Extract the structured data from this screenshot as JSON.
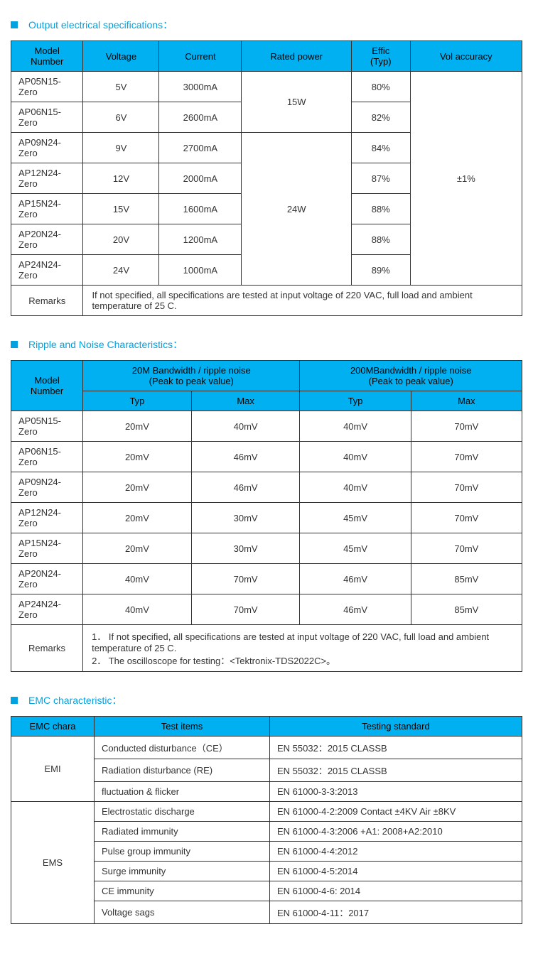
{
  "colors": {
    "accent": "#00a3e0",
    "header_bg": "#00b0f0",
    "border": "#333333",
    "text": "#333333"
  },
  "section1": {
    "title": "Output electrical specifications：",
    "headers": [
      "Model Number",
      "Voltage",
      "Current",
      "Rated power",
      "Effic (Typ)",
      "Vol accuracy"
    ],
    "rows": [
      {
        "model": "AP05N15-Zero",
        "voltage": "5V",
        "current": "3000mA",
        "effic": "80%"
      },
      {
        "model": "AP06N15-Zero",
        "voltage": "6V",
        "current": "2600mA",
        "effic": "82%"
      },
      {
        "model": "AP09N24-Zero",
        "voltage": "9V",
        "current": "2700mA",
        "effic": "84%"
      },
      {
        "model": "AP12N24-Zero",
        "voltage": "12V",
        "current": "2000mA",
        "effic": "87%"
      },
      {
        "model": "AP15N24-Zero",
        "voltage": "15V",
        "current": "1600mA",
        "effic": "88%"
      },
      {
        "model": "AP20N24-Zero",
        "voltage": "20V",
        "current": "1200mA",
        "effic": "88%"
      },
      {
        "model": "AP24N24-Zero",
        "voltage": "24V",
        "current": "1000mA",
        "effic": "89%"
      }
    ],
    "rated_power_1": "15W",
    "rated_power_2": "24W",
    "vol_accuracy": "±1%",
    "remarks_label": "Remarks",
    "remarks": "If not specified, all specifications are tested at input voltage of 220 VAC, full load and ambient temperature of 25 C."
  },
  "section2": {
    "title": "Ripple and Noise Characteristics：",
    "h_model": "Model Number",
    "h_20m": "20M Bandwidth / ripple noise (Peak to peak value)",
    "h_200m": "200MBandwidth / ripple noise (Peak to peak value)",
    "h_typ": "Typ",
    "h_max": "Max",
    "rows": [
      {
        "model": "AP05N15-Zero",
        "t1": "20mV",
        "m1": "40mV",
        "t2": "40mV",
        "m2": "70mV"
      },
      {
        "model": "AP06N15-Zero",
        "t1": "20mV",
        "m1": "46mV",
        "t2": "40mV",
        "m2": "70mV"
      },
      {
        "model": "AP09N24-Zero",
        "t1": "20mV",
        "m1": "46mV",
        "t2": "40mV",
        "m2": "70mV"
      },
      {
        "model": "AP12N24-Zero",
        "t1": "20mV",
        "m1": "30mV",
        "t2": "45mV",
        "m2": "70mV"
      },
      {
        "model": "AP15N24-Zero",
        "t1": "20mV",
        "m1": "30mV",
        "t2": "45mV",
        "m2": "70mV"
      },
      {
        "model": "AP20N24-Zero",
        "t1": "40mV",
        "m1": "70mV",
        "t2": "46mV",
        "m2": "85mV"
      },
      {
        "model": "AP24N24-Zero",
        "t1": "40mV",
        "m1": "70mV",
        "t2": "46mV",
        "m2": "85mV"
      }
    ],
    "remarks_label": "Remarks",
    "remarks": "1．  If not specified, all specifications are tested at input voltage of 220 VAC, full load and ambient temperature of 25 C.\n2．  The oscilloscope for testing：<Tektronix-TDS2022C>。"
  },
  "section3": {
    "title": "EMC characteristic：",
    "h1": "EMC chara",
    "h2": "Test items",
    "h3": "Testing standard",
    "emi_label": "EMI",
    "ems_label": "EMS",
    "emi_rows": [
      {
        "item": "Conducted disturbance（CE）",
        "std": "EN 55032：2015      CLASSB"
      },
      {
        "item": "Radiation disturbance (RE)",
        "std": "EN 55032：2015      CLASSB"
      },
      {
        "item": "fluctuation & flicker",
        "std": "EN 61000-3-3:2013"
      }
    ],
    "ems_rows": [
      {
        "item": "Electrostatic discharge",
        "std": "EN 61000-4-2:2009   Contact ±4KV   Air ±8KV"
      },
      {
        "item": "Radiated immunity",
        "std": "EN 61000-4-3:2006 +A1: 2008+A2:2010"
      },
      {
        "item": "Pulse group immunity",
        "std": "EN 61000-4-4:2012"
      },
      {
        "item": "Surge immunity",
        "std": "EN 61000-4-5:2014"
      },
      {
        "item": "CE immunity",
        "std": "EN 61000-4-6: 2014"
      },
      {
        "item": "Voltage sags",
        "std": "EN 61000-4-11：2017"
      }
    ]
  }
}
